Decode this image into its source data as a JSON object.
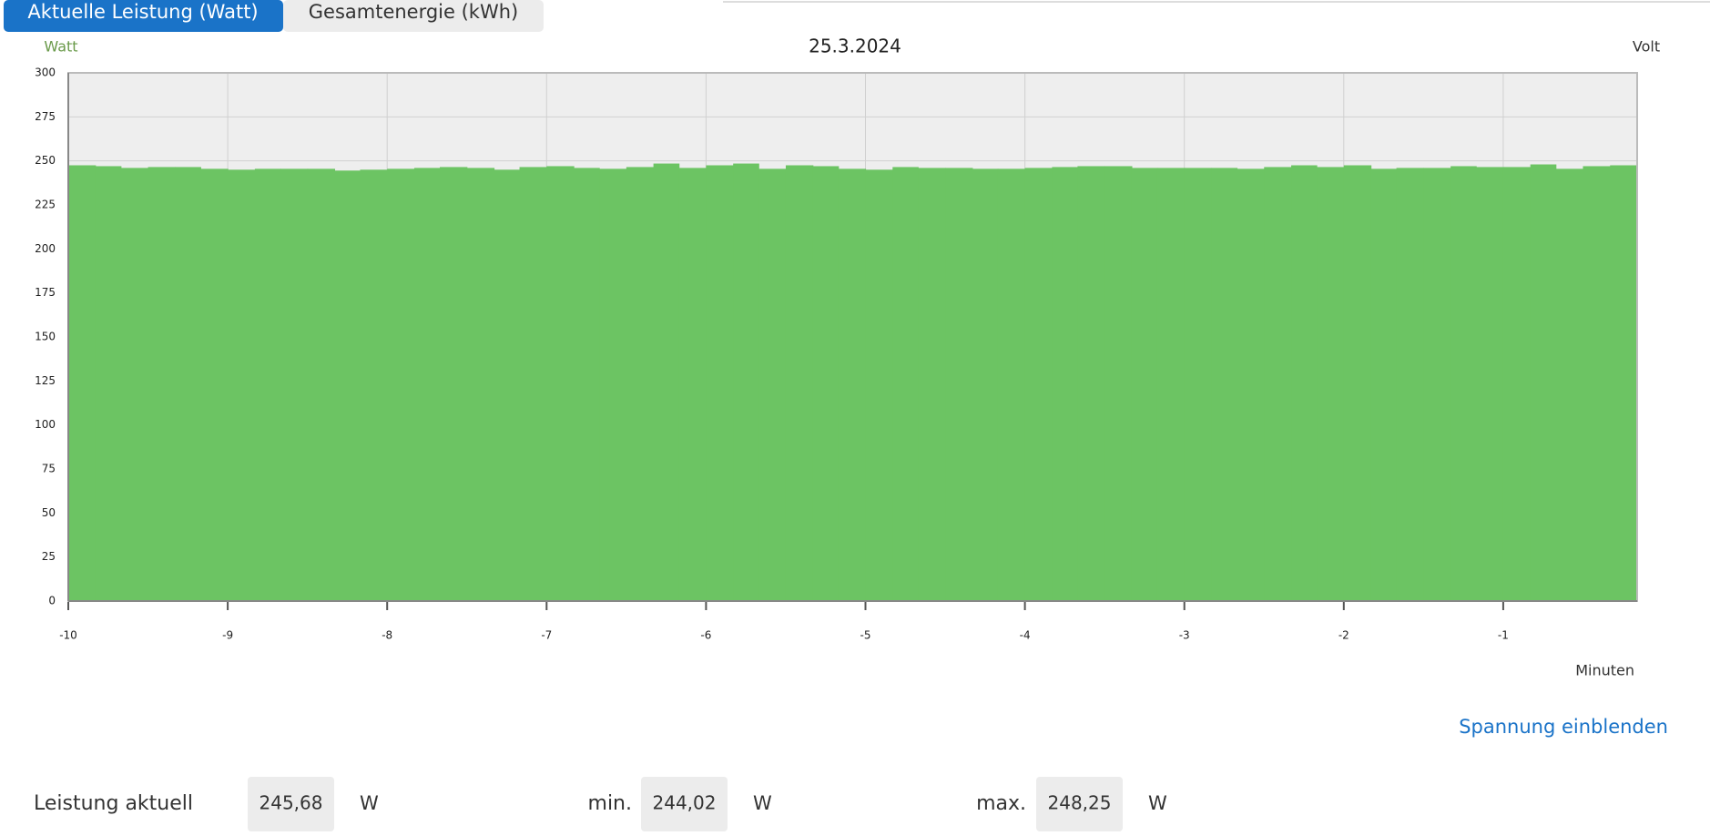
{
  "tabs": [
    "Aktuelle Leistung (Watt)",
    "Gesamtenergie (kWh)"
  ],
  "chart_data": {
    "type": "bar",
    "title": "25.3.2024",
    "y_label": "Watt",
    "y2_label": "Volt",
    "x_label": "Minuten",
    "color": "#6cc463",
    "x": [
      -10,
      -9.83,
      -9.67,
      -9.5,
      -9.33,
      -9.17,
      -9,
      -8.83,
      -8.67,
      -8.5,
      -8.33,
      -8.17,
      -8,
      -7.83,
      -7.67,
      -7.5,
      -7.33,
      -7.17,
      -7,
      -6.83,
      -6.67,
      -6.5,
      -6.33,
      -6.17,
      -6,
      -5.83,
      -5.67,
      -5.5,
      -5.33,
      -5.17,
      -5,
      -4.83,
      -4.67,
      -4.5,
      -4.33,
      -4.17,
      -4,
      -3.83,
      -3.67,
      -3.5,
      -3.33,
      -3.17,
      -3,
      -2.83,
      -2.67,
      -2.5,
      -2.33,
      -2.17,
      -2,
      -1.83,
      -1.67,
      -1.5,
      -1.33,
      -1.17,
      -1,
      -0.83,
      -0.67,
      -0.5,
      -0.33
    ],
    "values": [
      247.5,
      247,
      246,
      246.5,
      246.5,
      245.5,
      245,
      245.5,
      245.5,
      245.5,
      244.5,
      245,
      245.5,
      246,
      246.5,
      246,
      245,
      246.5,
      247,
      246,
      245.5,
      246.5,
      248.5,
      246,
      247.5,
      248.5,
      245.5,
      247.5,
      247,
      245.5,
      245,
      246.5,
      246,
      246,
      245.5,
      245.5,
      246,
      246.5,
      247,
      247,
      246,
      246,
      246,
      246,
      245.5,
      246.5,
      247.5,
      246.5,
      247.5,
      245.5,
      246,
      246,
      247,
      246.5,
      246.5,
      248,
      245.5,
      247,
      247.5
    ],
    "xlim": [
      -10,
      -0.16
    ],
    "xticks": [
      -10,
      -9,
      -8,
      -7,
      -6,
      -5,
      -4,
      -3,
      -2,
      -1
    ],
    "ylim": [
      0,
      300
    ],
    "yticks": [
      0,
      25,
      50,
      75,
      100,
      125,
      150,
      175,
      200,
      225,
      250,
      275,
      300
    ],
    "grid": true
  },
  "link": "Spannung einblenden",
  "stats": [
    {
      "label": "Leistung aktuell",
      "value": "245,68",
      "unit": "W"
    },
    {
      "label": "min.",
      "value": "244,02",
      "unit": "W"
    },
    {
      "label": "max.",
      "value": "248,25",
      "unit": "W"
    }
  ]
}
